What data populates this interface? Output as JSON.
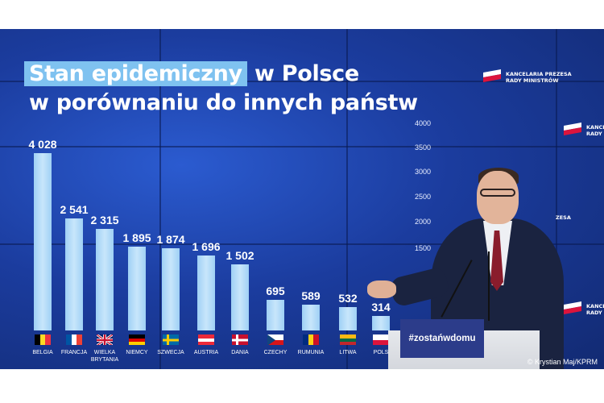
{
  "headline": {
    "highlight": "Stan epidemiczny",
    "rest_line1": "w Polsce",
    "line2": "w porównaniu do innych państw"
  },
  "logo": {
    "line1": "KANCELARIA PREZESA",
    "line2": "RADY MINISTRÓW"
  },
  "side_logos": [
    {
      "line1": "KANCELA",
      "line2": "RADY M"
    },
    {
      "line1": "KANCELA",
      "line2": "RADY"
    }
  ],
  "side_fragment": "ZESA",
  "podium_text": "#zostańwdomu",
  "credit": "© Krystian Maj/KPRM",
  "axis": {
    "ticks": [
      "4000",
      "3500",
      "3000",
      "2500",
      "2000",
      "1500"
    ]
  },
  "countries": [
    {
      "name": "BELGIA",
      "label": "4 028",
      "value": 4028,
      "flag": "belgium-flag-icon"
    },
    {
      "name": "FRANCJA",
      "label": "2 541",
      "value": 2541,
      "flag": "france-flag-icon"
    },
    {
      "name": "WIELKA BRYTANIA",
      "label": "2 315",
      "value": 2315,
      "flag": "uk-flag-icon"
    },
    {
      "name": "NIEMCY",
      "label": "1 895",
      "value": 1895,
      "flag": "germany-flag-icon"
    },
    {
      "name": "SZWECJA",
      "label": "1 874",
      "value": 1874,
      "flag": "sweden-flag-icon"
    },
    {
      "name": "AUSTRIA",
      "label": "1 696",
      "value": 1696,
      "flag": "austria-flag-icon"
    },
    {
      "name": "DANIA",
      "label": "1 502",
      "value": 1502,
      "flag": "denmark-flag-icon"
    },
    {
      "name": "CZECHY",
      "label": "695",
      "value": 695,
      "flag": "czech-flag-icon"
    },
    {
      "name": "RUMUNIA",
      "label": "589",
      "value": 589,
      "flag": "romania-flag-icon"
    },
    {
      "name": "LITWA",
      "label": "532",
      "value": 532,
      "flag": "lithuania-flag-icon"
    },
    {
      "name": "POLS",
      "label": "314",
      "value": 314,
      "flag": "poland-flag-icon"
    }
  ],
  "colors": {
    "screen_blue": "#1b3c9e",
    "bar": "#b8ddf8",
    "highlight": "#7fc2f0",
    "podium_plate": "#2c3c8a"
  }
}
